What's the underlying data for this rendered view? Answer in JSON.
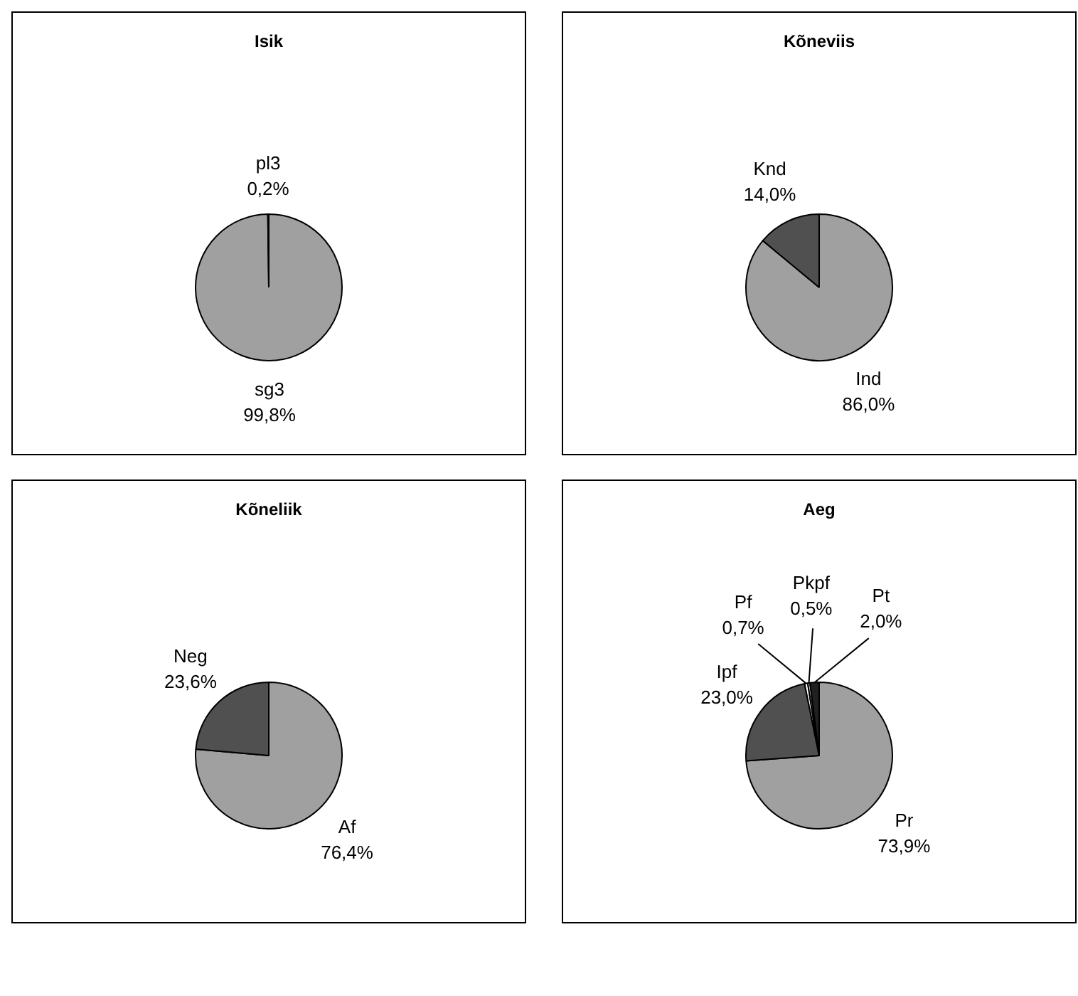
{
  "chart_data": [
    {
      "type": "pie",
      "title": "Isik",
      "categories": [
        "sg3",
        "pl3"
      ],
      "values": [
        99.8,
        0.2
      ],
      "colors": [
        "#a0a0a0",
        "#000000"
      ],
      "value_labels": [
        "99,8%",
        "0,2%"
      ]
    },
    {
      "type": "pie",
      "title": "Kõneviis",
      "categories": [
        "Ind",
        "Knd"
      ],
      "values": [
        86.0,
        14.0
      ],
      "colors": [
        "#a0a0a0",
        "#505050"
      ],
      "value_labels": [
        "86,0%",
        "14,0%"
      ]
    },
    {
      "type": "pie",
      "title": "Kõneliik",
      "categories": [
        "Af",
        "Neg"
      ],
      "values": [
        76.4,
        23.6
      ],
      "colors": [
        "#a0a0a0",
        "#505050"
      ],
      "value_labels": [
        "76,4%",
        "23,6%"
      ]
    },
    {
      "type": "pie",
      "title": "Aeg",
      "categories": [
        "Pr",
        "Ipf",
        "Pf",
        "Pkpf",
        "Pt"
      ],
      "values": [
        73.9,
        23.0,
        0.7,
        0.5,
        2.0
      ],
      "colors": [
        "#a0a0a0",
        "#505050",
        "#ffffff",
        "#d0d0d0",
        "#202020"
      ],
      "value_labels": [
        "73,9%",
        "23,0%",
        "0,7%",
        "0,5%",
        "2,0%"
      ]
    }
  ]
}
